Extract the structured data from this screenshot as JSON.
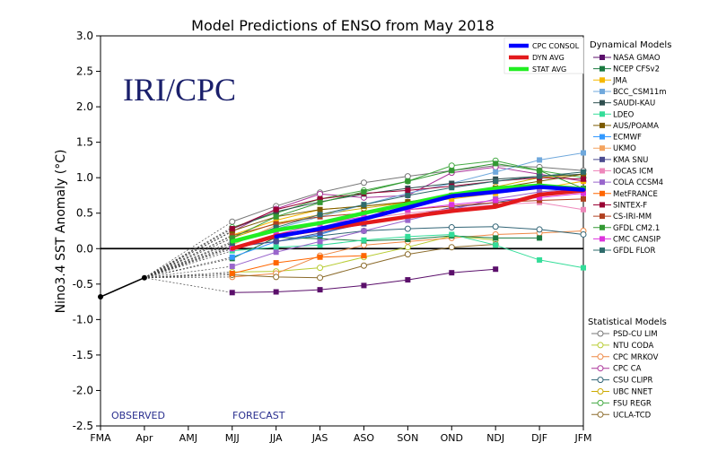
{
  "chart_data": {
    "type": "line",
    "title": "Model Predictions of ENSO from May 2018",
    "xlabel": "",
    "ylabel": "Nino3.4 SST Anomaly (°C)",
    "ylim": [
      -2.5,
      3.0
    ],
    "categories": [
      "FMA",
      "Apr",
      "AMJ",
      "MJJ",
      "JJA",
      "JAS",
      "ASO",
      "SON",
      "OND",
      "NDJ",
      "DJF",
      "JFM"
    ],
    "yticks": [
      "-2.5",
      "-2.0",
      "-1.5",
      "-1.0",
      "-0.5",
      "0.0",
      "0.5",
      "1.0",
      "1.5",
      "2.0",
      "2.5",
      "3.0"
    ],
    "observed_label": "OBSERVED",
    "forecast_label": "FORECAST",
    "watermark": "IRI/CPC",
    "observed": [
      -0.68,
      -0.41
    ],
    "avg_series": [
      {
        "name": "CPC CONSOL",
        "color": "#0000ff",
        "start": 3,
        "values": [
          null,
          null,
          null,
          null,
          0.17,
          0.28,
          0.42,
          0.58,
          0.74,
          0.8,
          0.87,
          0.83
        ]
      },
      {
        "name": "DYN AVG",
        "color": "#e31a1c",
        "start": 3,
        "values": [
          null,
          null,
          null,
          0.0,
          0.18,
          0.27,
          0.36,
          0.45,
          0.53,
          0.59,
          0.76,
          0.82
        ]
      },
      {
        "name": "STAT AVG",
        "color": "#22ee22",
        "start": 3,
        "values": [
          null,
          null,
          null,
          0.1,
          0.26,
          0.36,
          0.5,
          0.63,
          0.76,
          0.85,
          0.89,
          0.84
        ]
      }
    ],
    "dynamical_legend_title": "Dynamical Models",
    "dynamical": [
      {
        "name": "NASA GMAO",
        "color": "#5b0f6b",
        "values": [
          null,
          null,
          null,
          -0.62,
          -0.61,
          -0.58,
          -0.52,
          -0.44,
          -0.34,
          -0.29,
          null,
          null
        ]
      },
      {
        "name": "NCEP CFSv2",
        "color": "#1a7a40",
        "values": [
          null,
          null,
          null,
          -0.14,
          0.16,
          0.14,
          0.11,
          0.13,
          0.18,
          0.15,
          0.15,
          null
        ]
      },
      {
        "name": "JMA",
        "color": "#f5b800",
        "values": [
          null,
          null,
          null,
          0.19,
          0.4,
          0.55,
          0.6,
          0.65,
          0.7,
          0.78,
          0.85,
          0.95
        ]
      },
      {
        "name": "BCC_CSM11m",
        "color": "#6fa8dc",
        "values": [
          null,
          null,
          null,
          0.08,
          0.28,
          0.45,
          0.62,
          0.78,
          0.92,
          1.08,
          1.25,
          1.35
        ]
      },
      {
        "name": "SAUDI-KAU",
        "color": "#2f4f4f",
        "values": [
          null,
          null,
          null,
          0.28,
          0.52,
          0.66,
          0.77,
          0.85,
          0.92,
          0.98,
          1.02,
          1.05
        ]
      },
      {
        "name": "LDEO",
        "color": "#33dd99",
        "values": [
          null,
          null,
          null,
          -0.03,
          0.02,
          0.05,
          0.12,
          0.17,
          0.2,
          0.05,
          -0.16,
          -0.27
        ]
      },
      {
        "name": "AUS/POAMA",
        "color": "#7b5a00",
        "values": [
          null,
          null,
          null,
          0.25,
          0.45,
          0.55,
          0.6,
          0.66,
          0.75,
          0.85,
          0.95,
          1.05
        ]
      },
      {
        "name": "ECMWF",
        "color": "#3399ff",
        "values": [
          null,
          null,
          null,
          -0.12,
          0.1,
          0.2,
          0.38,
          null,
          null,
          null,
          null,
          null
        ]
      },
      {
        "name": "UKMO",
        "color": "#f4a460",
        "values": [
          null,
          null,
          null,
          0.05,
          0.33,
          0.48,
          null,
          null,
          null,
          null,
          null,
          null
        ]
      },
      {
        "name": "KMA SNU",
        "color": "#4b4b8f",
        "values": [
          null,
          null,
          null,
          0.02,
          0.1,
          0.22,
          0.35,
          0.45,
          0.58,
          0.65,
          0.75,
          0.85
        ]
      },
      {
        "name": "IOCAS ICM",
        "color": "#ee88bb",
        "values": [
          null,
          null,
          null,
          0.1,
          0.25,
          0.35,
          0.42,
          0.5,
          0.56,
          0.62,
          0.65,
          0.55
        ]
      },
      {
        "name": "COLA CCSM4",
        "color": "#9966cc",
        "values": [
          null,
          null,
          null,
          -0.25,
          -0.05,
          0.1,
          0.25,
          0.4,
          0.55,
          0.7,
          0.8,
          0.85
        ]
      },
      {
        "name": "MetFRANCE",
        "color": "#ff6600",
        "values": [
          null,
          null,
          null,
          -0.35,
          -0.2,
          -0.12,
          -0.1,
          null,
          null,
          null,
          null,
          null
        ]
      },
      {
        "name": "SINTEX-F",
        "color": "#990033",
        "values": [
          null,
          null,
          null,
          0.28,
          0.55,
          0.7,
          0.78,
          0.82,
          0.88,
          0.95,
          1.0,
          0.98
        ]
      },
      {
        "name": "CS-IRI-MM",
        "color": "#b04020",
        "values": [
          null,
          null,
          null,
          0.18,
          0.35,
          0.45,
          0.5,
          0.55,
          0.6,
          0.65,
          0.68,
          0.7
        ]
      },
      {
        "name": "GFDL CM2.1",
        "color": "#339933",
        "values": [
          null,
          null,
          null,
          0.15,
          0.45,
          0.65,
          0.8,
          0.95,
          1.1,
          1.2,
          1.1,
          0.85
        ]
      },
      {
        "name": "CMC CANSIP",
        "color": "#dd33dd",
        "values": [
          null,
          null,
          null,
          0.0,
          0.2,
          0.35,
          0.45,
          0.55,
          0.62,
          0.68,
          0.72,
          0.78
        ]
      },
      {
        "name": "GFDL FLOR",
        "color": "#2e6b6b",
        "values": [
          null,
          null,
          null,
          0.08,
          0.3,
          0.48,
          0.62,
          0.75,
          0.86,
          0.95,
          1.02,
          1.08
        ]
      }
    ],
    "statistical_legend_title": "Statistical Models",
    "statistical": [
      {
        "name": "PSD-CU LIM",
        "color": "#777777",
        "values": [
          null,
          null,
          null,
          0.38,
          0.6,
          0.79,
          0.93,
          1.02,
          1.1,
          1.17,
          1.15,
          1.1
        ]
      },
      {
        "name": "NTU CODA",
        "color": "#b8cc33",
        "values": [
          null,
          null,
          null,
          -0.33,
          -0.32,
          -0.27,
          -0.12,
          0.02,
          0.18,
          0.12,
          null,
          null
        ]
      },
      {
        "name": "CPC MRKOV",
        "color": "#ee8844",
        "values": [
          null,
          null,
          null,
          -0.4,
          -0.35,
          -0.1,
          0.05,
          0.1,
          0.15,
          0.2,
          0.22,
          0.25
        ]
      },
      {
        "name": "CPC CA",
        "color": "#aa3399",
        "values": [
          null,
          null,
          null,
          0.24,
          0.56,
          0.77,
          0.72,
          0.75,
          1.07,
          1.15,
          1.05,
          0.95
        ]
      },
      {
        "name": "CSU CLIPR",
        "color": "#336677",
        "values": [
          null,
          null,
          null,
          0.03,
          0.1,
          0.18,
          0.25,
          0.28,
          0.3,
          0.31,
          0.27,
          0.2
        ]
      },
      {
        "name": "UBC NNET",
        "color": "#ccaa00",
        "values": [
          null,
          null,
          null,
          0.15,
          0.36,
          0.48,
          0.57,
          0.65,
          0.75,
          0.87,
          1.0,
          1.05
        ]
      },
      {
        "name": "FSU REGR",
        "color": "#44aa44",
        "values": [
          null,
          null,
          null,
          0.3,
          0.5,
          0.7,
          0.82,
          0.95,
          1.17,
          1.24,
          1.1,
          1.0
        ]
      },
      {
        "name": "UCLA-TCD",
        "color": "#8b6b2b",
        "values": [
          null,
          null,
          null,
          -0.37,
          -0.4,
          -0.41,
          -0.24,
          -0.08,
          0.02,
          0.06,
          null,
          null
        ]
      }
    ]
  }
}
